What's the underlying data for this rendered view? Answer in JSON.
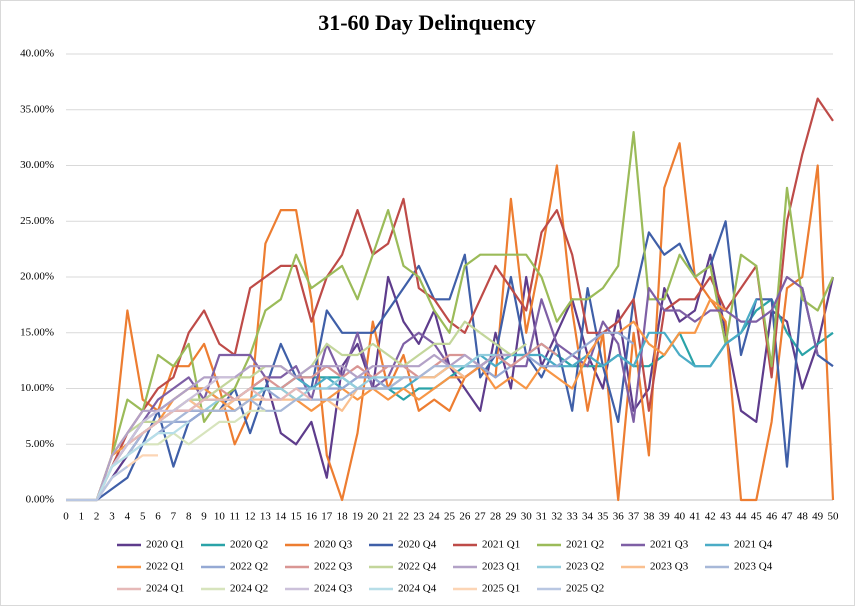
{
  "chart_data": {
    "type": "line",
    "title": "31-60 Day Delinquency",
    "categories": [
      0,
      1,
      2,
      3,
      4,
      5,
      6,
      7,
      8,
      9,
      10,
      11,
      12,
      13,
      14,
      15,
      16,
      17,
      18,
      19,
      20,
      21,
      22,
      23,
      24,
      25,
      26,
      27,
      28,
      29,
      30,
      31,
      32,
      33,
      34,
      35,
      36,
      37,
      38,
      39,
      40,
      41,
      42,
      43,
      44,
      45,
      46,
      47,
      48,
      49,
      50
    ],
    "ylim": [
      0,
      40
    ],
    "yticks": [
      {
        "value": 0,
        "label": "0.00%"
      },
      {
        "value": 5,
        "label": "5.00%"
      },
      {
        "value": 10,
        "label": "10.00%"
      },
      {
        "value": 15,
        "label": "15.00%"
      },
      {
        "value": 20,
        "label": "20.00%"
      },
      {
        "value": 25,
        "label": "25.00%"
      },
      {
        "value": 30,
        "label": "30.00%"
      },
      {
        "value": 35,
        "label": "35.00%"
      },
      {
        "value": 40,
        "label": "40.00%"
      }
    ],
    "grid": true,
    "legend": "bottom",
    "series": [
      {
        "name": "2020 Q1",
        "color": "#5e3c8c",
        "values": [
          0,
          0,
          0,
          2,
          4,
          6,
          7,
          8,
          8,
          8,
          8,
          9,
          10,
          11,
          6,
          5,
          7,
          2,
          12,
          14,
          10,
          20,
          16,
          14,
          17,
          12,
          10,
          8,
          15,
          10,
          20,
          12,
          15,
          18,
          13,
          10,
          17,
          8,
          10,
          19,
          16,
          17,
          22,
          15,
          8,
          7,
          17,
          16,
          10,
          14,
          20
        ]
      },
      {
        "name": "2020 Q2",
        "color": "#2aa3a8",
        "values": [
          0,
          0,
          0,
          3,
          5,
          6,
          7,
          8,
          9,
          9,
          9,
          9,
          10,
          10,
          10,
          11,
          11,
          11,
          11,
          10,
          10,
          10,
          9,
          10,
          10,
          11,
          12,
          12,
          13,
          13,
          13,
          14,
          13,
          12,
          12,
          12,
          13,
          12,
          12,
          13,
          15,
          12,
          12,
          14,
          15,
          17,
          18,
          15,
          13,
          14,
          15
        ]
      },
      {
        "name": "2020 Q3",
        "color": "#ed7d31",
        "values": [
          0,
          0,
          0,
          4,
          17,
          9,
          8,
          12,
          12,
          14,
          10,
          5,
          8,
          23,
          26,
          26,
          18,
          4,
          0,
          6,
          16,
          10,
          13,
          8,
          9,
          8,
          11,
          12,
          11,
          27,
          15,
          22,
          30,
          17,
          8,
          15,
          0,
          15,
          4,
          28,
          32,
          20,
          18,
          16,
          0,
          0,
          7,
          19,
          20,
          30,
          0
        ]
      },
      {
        "name": "2020 Q4",
        "color": "#3f5fa8",
        "values": [
          0,
          0,
          0,
          1,
          2,
          5,
          8,
          3,
          7,
          8,
          8,
          10,
          6,
          10,
          14,
          11,
          10,
          17,
          15,
          15,
          15,
          17,
          19,
          21,
          18,
          18,
          22,
          11,
          13,
          20,
          13,
          11,
          14,
          8,
          19,
          12,
          7,
          18,
          24,
          22,
          23,
          20,
          21,
          25,
          13,
          18,
          18,
          3,
          19,
          13,
          12
        ]
      },
      {
        "name": "2021 Q1",
        "color": "#be4b48",
        "values": [
          0,
          0,
          0,
          3,
          6,
          8,
          10,
          11,
          15,
          17,
          14,
          13,
          19,
          20,
          21,
          21,
          16,
          20,
          22,
          26,
          22,
          23,
          27,
          19,
          18,
          16,
          15,
          18,
          21,
          19,
          17,
          24,
          26,
          22,
          15,
          15,
          16,
          18,
          8,
          17,
          18,
          18,
          20,
          17,
          19,
          21,
          11,
          25,
          31,
          36,
          34
        ]
      },
      {
        "name": "2021 Q2",
        "color": "#9bbb59",
        "values": [
          0,
          0,
          0,
          4,
          9,
          8,
          13,
          12,
          14,
          7,
          9,
          10,
          13,
          17,
          18,
          22,
          19,
          20,
          21,
          18,
          22,
          26,
          21,
          20,
          17,
          15,
          21,
          22,
          22,
          22,
          22,
          20,
          16,
          18,
          18,
          19,
          21,
          33,
          18,
          18,
          22,
          20,
          21,
          14,
          22,
          21,
          12,
          28,
          18,
          17,
          20
        ]
      },
      {
        "name": "2021 Q3",
        "color": "#7e5fa5",
        "values": [
          0,
          0,
          0,
          3,
          5,
          7,
          9,
          10,
          11,
          9,
          13,
          13,
          13,
          11,
          11,
          12,
          9,
          14,
          11,
          15,
          10,
          11,
          14,
          15,
          14,
          12,
          11,
          12,
          13,
          12,
          12,
          18,
          14,
          13,
          12,
          16,
          14,
          7,
          19,
          17,
          17,
          16,
          17,
          17,
          16,
          16,
          17,
          20,
          19,
          13,
          null
        ]
      },
      {
        "name": "2021 Q4",
        "color": "#4bacc6",
        "values": [
          0,
          0,
          0,
          3,
          5,
          7,
          8,
          9,
          10,
          10,
          9,
          9,
          9,
          10,
          10,
          11,
          10,
          11,
          10,
          11,
          11,
          10,
          10,
          11,
          11,
          12,
          12,
          13,
          12,
          13,
          13,
          13,
          12,
          12,
          13,
          12,
          13,
          12,
          15,
          15,
          13,
          12,
          12,
          14,
          15,
          18,
          null,
          null,
          null,
          null,
          null
        ]
      },
      {
        "name": "2022 Q1",
        "color": "#f79646",
        "values": [
          0,
          0,
          0,
          4,
          5,
          6,
          7,
          9,
          10,
          10,
          9,
          8,
          9,
          10,
          10,
          9,
          8,
          9,
          10,
          9,
          10,
          9,
          10,
          9,
          10,
          11,
          11,
          12,
          10,
          11,
          10,
          12,
          11,
          10,
          13,
          15,
          15,
          16,
          14,
          13,
          15,
          15,
          18,
          17,
          null,
          null,
          null,
          null,
          null,
          null,
          null
        ]
      },
      {
        "name": "2022 Q2",
        "color": "#95a9d4",
        "values": [
          0,
          0,
          0,
          3,
          4,
          5,
          6,
          7,
          7,
          8,
          8,
          9,
          9,
          10,
          9,
          10,
          10,
          10,
          10,
          11,
          11,
          10,
          11,
          11,
          11,
          12,
          12,
          12,
          11,
          12,
          13,
          12,
          12,
          13,
          14,
          15,
          15,
          14,
          null,
          null,
          null,
          null,
          null,
          null,
          null,
          null,
          null,
          null,
          null,
          null,
          null
        ]
      },
      {
        "name": "2022 Q3",
        "color": "#d99694",
        "values": [
          0,
          0,
          0,
          3,
          5,
          6,
          7,
          8,
          8,
          9,
          10,
          9,
          10,
          11,
          10,
          11,
          11,
          12,
          11,
          12,
          11,
          12,
          12,
          11,
          12,
          13,
          13,
          12,
          13,
          12,
          13,
          14,
          13,
          null,
          null,
          null,
          null,
          null,
          null,
          null,
          null,
          null,
          null,
          null,
          null,
          null,
          null,
          null,
          null,
          null,
          null
        ]
      },
      {
        "name": "2022 Q4",
        "color": "#c3d69b",
        "values": [
          0,
          0,
          0,
          4,
          6,
          7,
          7,
          8,
          9,
          9,
          10,
          11,
          11,
          12,
          12,
          11,
          12,
          14,
          13,
          13,
          14,
          13,
          12,
          13,
          14,
          14,
          16,
          15,
          14,
          13,
          14,
          null,
          null,
          null,
          null,
          null,
          null,
          null,
          null,
          null,
          null,
          null,
          null,
          null,
          null,
          null,
          null,
          null,
          null,
          null,
          null
        ]
      },
      {
        "name": "2023 Q1",
        "color": "#b3a2c7",
        "values": [
          0,
          0,
          0,
          4,
          6,
          8,
          8,
          9,
          10,
          11,
          11,
          11,
          12,
          12,
          12,
          11,
          12,
          12,
          12,
          11,
          12,
          12,
          12,
          12,
          13,
          12,
          13,
          12,
          13,
          13,
          null,
          null,
          null,
          null,
          null,
          null,
          null,
          null,
          null,
          null,
          null,
          null,
          null,
          null,
          null,
          null,
          null,
          null,
          null,
          null,
          null
        ]
      },
      {
        "name": "2023 Q2",
        "color": "#93cddd",
        "values": [
          0,
          0,
          0,
          3,
          5,
          6,
          7,
          8,
          9,
          8,
          9,
          9,
          9,
          10,
          10,
          9,
          10,
          10,
          11,
          10,
          11,
          11,
          11,
          11,
          11,
          12,
          12,
          13,
          13,
          null,
          null,
          null,
          null,
          null,
          null,
          null,
          null,
          null,
          null,
          null,
          null,
          null,
          null,
          null,
          null,
          null,
          null,
          null,
          null,
          null,
          null
        ]
      },
      {
        "name": "2023 Q3",
        "color": "#fac090",
        "values": [
          0,
          0,
          0,
          3,
          5,
          6,
          7,
          8,
          9,
          8,
          8,
          9,
          9,
          9,
          9,
          9,
          9,
          9,
          8,
          10,
          10,
          10,
          11,
          11,
          11,
          12,
          11,
          null,
          null,
          null,
          null,
          null,
          null,
          null,
          null,
          null,
          null,
          null,
          null,
          null,
          null,
          null,
          null,
          null,
          null,
          null,
          null,
          null,
          null,
          null,
          null
        ]
      },
      {
        "name": "2023 Q4",
        "color": "#a7b8d8",
        "values": [
          0,
          0,
          0,
          3,
          4,
          6,
          7,
          7,
          8,
          8,
          8,
          8,
          9,
          8,
          8,
          9,
          9,
          9,
          9,
          10,
          10,
          10,
          11,
          11,
          12,
          12,
          null,
          null,
          null,
          null,
          null,
          null,
          null,
          null,
          null,
          null,
          null,
          null,
          null,
          null,
          null,
          null,
          null,
          null,
          null,
          null,
          null,
          null,
          null,
          null,
          null
        ]
      },
      {
        "name": "2024 Q1",
        "color": "#e6b9b8",
        "values": [
          0,
          0,
          0,
          3,
          5,
          6,
          7,
          8,
          8,
          9,
          9,
          9,
          10,
          9,
          9,
          10,
          9,
          null,
          null,
          null,
          null,
          null,
          null,
          null,
          null,
          null,
          null,
          null,
          null,
          null,
          null,
          null,
          null,
          null,
          null,
          null,
          null,
          null,
          null,
          null,
          null,
          null,
          null,
          null,
          null,
          null,
          null,
          null,
          null,
          null,
          null
        ]
      },
      {
        "name": "2024 Q2",
        "color": "#d7e4bd",
        "values": [
          0,
          0,
          0,
          3,
          4,
          5,
          5,
          6,
          5,
          6,
          7,
          7,
          8,
          8,
          null,
          null,
          null,
          null,
          null,
          null,
          null,
          null,
          null,
          null,
          null,
          null,
          null,
          null,
          null,
          null,
          null,
          null,
          null,
          null,
          null,
          null,
          null,
          null,
          null,
          null,
          null,
          null,
          null,
          null,
          null,
          null,
          null,
          null,
          null,
          null,
          null
        ]
      },
      {
        "name": "2024 Q3",
        "color": "#ccc1da",
        "values": [
          0,
          0,
          0,
          3,
          5,
          7,
          8,
          8,
          9,
          10,
          11,
          11,
          null,
          null,
          null,
          null,
          null,
          null,
          null,
          null,
          null,
          null,
          null,
          null,
          null,
          null,
          null,
          null,
          null,
          null,
          null,
          null,
          null,
          null,
          null,
          null,
          null,
          null,
          null,
          null,
          null,
          null,
          null,
          null,
          null,
          null,
          null,
          null,
          null,
          null,
          null
        ]
      },
      {
        "name": "2024 Q4",
        "color": "#b7dee8",
        "values": [
          0,
          0,
          0,
          3,
          4,
          5,
          6,
          6,
          7,
          null,
          null,
          null,
          null,
          null,
          null,
          null,
          null,
          null,
          null,
          null,
          null,
          null,
          null,
          null,
          null,
          null,
          null,
          null,
          null,
          null,
          null,
          null,
          null,
          null,
          null,
          null,
          null,
          null,
          null,
          null,
          null,
          null,
          null,
          null,
          null,
          null,
          null,
          null,
          null,
          null,
          null
        ]
      },
      {
        "name": "2025 Q1",
        "color": "#fcd5b5",
        "values": [
          0,
          0,
          0,
          2,
          3,
          4,
          4,
          null,
          null,
          null,
          null,
          null,
          null,
          null,
          null,
          null,
          null,
          null,
          null,
          null,
          null,
          null,
          null,
          null,
          null,
          null,
          null,
          null,
          null,
          null,
          null,
          null,
          null,
          null,
          null,
          null,
          null,
          null,
          null,
          null,
          null,
          null,
          null,
          null,
          null,
          null,
          null,
          null,
          null,
          null,
          null
        ]
      },
      {
        "name": "2025 Q2",
        "color": "#b9c7e2",
        "values": [
          0,
          0,
          0,
          2,
          3,
          null,
          null,
          null,
          null,
          null,
          null,
          null,
          null,
          null,
          null,
          null,
          null,
          null,
          null,
          null,
          null,
          null,
          null,
          null,
          null,
          null,
          null,
          null,
          null,
          null,
          null,
          null,
          null,
          null,
          null,
          null,
          null,
          null,
          null,
          null,
          null,
          null,
          null,
          null,
          null,
          null,
          null,
          null,
          null,
          null,
          null
        ]
      }
    ]
  }
}
